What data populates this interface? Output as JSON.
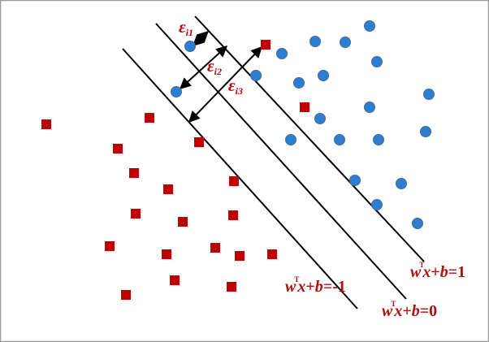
{
  "colors": {
    "negative_class": "#c00000",
    "positive_class": "#2a7fd4",
    "point_outline": "#4a6a8a",
    "line": "#000000",
    "label": "#b01010",
    "frame": "#9a9a9a"
  },
  "boundaries": {
    "negative_margin": {
      "w": "w",
      "sup": "T",
      "x": "x",
      "rest": "+",
      "b": "b",
      "value": "=-1"
    },
    "decision": {
      "w": "w",
      "sup": "T",
      "x": "x",
      "rest": "+",
      "b": "b",
      "value": "=0"
    },
    "positive_margin": {
      "w": "w",
      "sup": "T",
      "x": "x",
      "rest": "+",
      "b": "b",
      "value": "=1"
    }
  },
  "slacks": [
    {
      "symbol": "ε",
      "sub": "i1"
    },
    {
      "symbol": "ε",
      "sub": "i2"
    },
    {
      "symbol": "ε",
      "sub": "i3"
    }
  ]
}
